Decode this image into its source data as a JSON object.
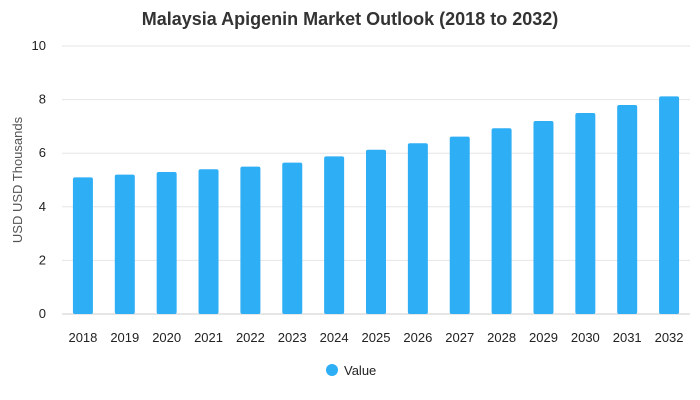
{
  "chart_data": {
    "type": "bar",
    "title": "Malaysia Apigenin Market Outlook (2018 to 2032)",
    "xlabel": "",
    "ylabel": "USD USD Thousands",
    "categories": [
      "2018",
      "2019",
      "2020",
      "2021",
      "2022",
      "2023",
      "2024",
      "2025",
      "2026",
      "2027",
      "2028",
      "2029",
      "2030",
      "2031",
      "2032"
    ],
    "series": [
      {
        "name": "Value",
        "color": "#2eaef5",
        "values": [
          5.1,
          5.2,
          5.3,
          5.4,
          5.5,
          5.65,
          5.88,
          6.13,
          6.37,
          6.62,
          6.93,
          7.2,
          7.5,
          7.8,
          8.12
        ]
      }
    ],
    "ylim": [
      0,
      10
    ],
    "yticks": [
      0,
      2,
      4,
      6,
      8,
      10
    ],
    "grid": true,
    "legend": "bottom-center"
  }
}
